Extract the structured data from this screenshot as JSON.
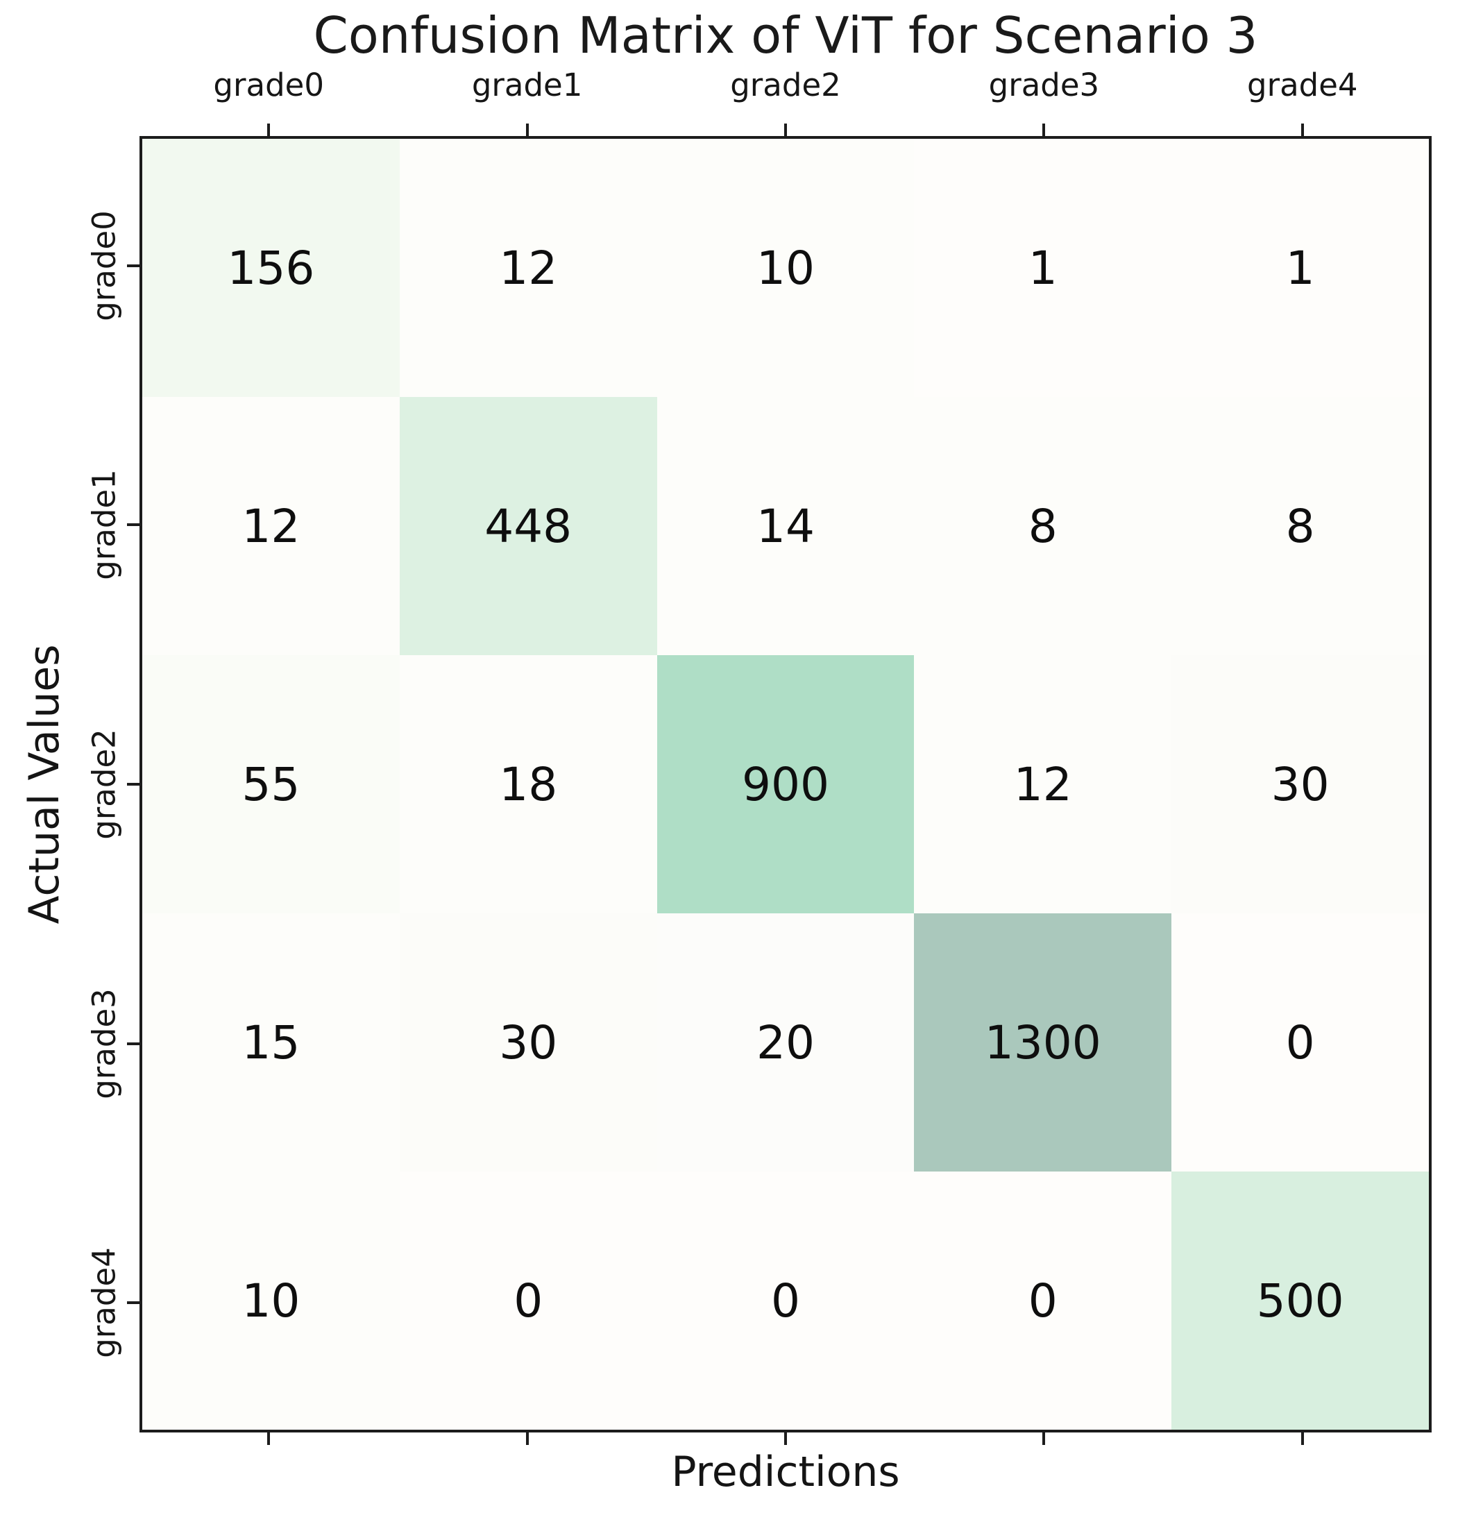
{
  "chart_data": {
    "type": "heatmap",
    "title": "Confusion Matrix of ViT for Scenario 3",
    "xlabel": "Predictions",
    "ylabel": "Actual Values",
    "x_categories": [
      "grade0",
      "grade1",
      "grade2",
      "grade3",
      "grade4"
    ],
    "y_categories": [
      "grade0",
      "grade1",
      "grade2",
      "grade3",
      "grade4"
    ],
    "matrix": [
      [
        156,
        12,
        10,
        1,
        1
      ],
      [
        12,
        448,
        14,
        8,
        8
      ],
      [
        55,
        18,
        900,
        12,
        30
      ],
      [
        15,
        30,
        20,
        1300,
        0
      ],
      [
        10,
        0,
        0,
        0,
        500
      ]
    ],
    "vmin": 0,
    "vmax": 1300,
    "x_tick_label_side": "top",
    "y_tick_label_side": "left",
    "grid": false,
    "legend": false,
    "colormap_stops": [
      {
        "at": 0.0,
        "color": "#fefdfb"
      },
      {
        "at": 0.12,
        "color": "#f2f9f0"
      },
      {
        "at": 0.345,
        "color": "#ddf1e2"
      },
      {
        "at": 0.692,
        "color": "#afdec6"
      },
      {
        "at": 1.0,
        "color": "#aac8bc"
      }
    ]
  },
  "colors": {
    "spine": "#1c1c1c",
    "cell_text": "#0e0e0e",
    "title_text": "#1a1a1a",
    "background": "#ffffff"
  }
}
